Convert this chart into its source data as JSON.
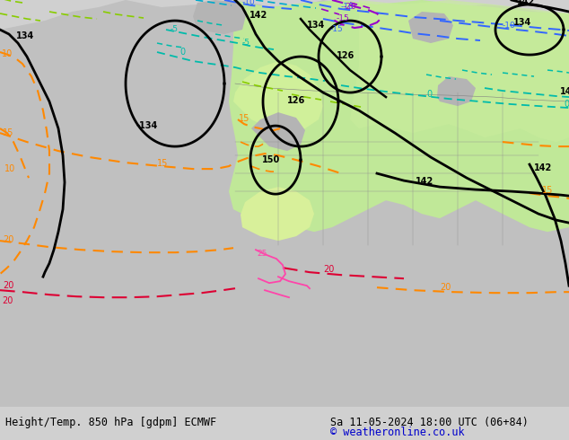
{
  "title_left": "Height/Temp. 850 hPa [gdpm] ECMWF",
  "title_right": "Sa 11-05-2024 18:00 UTC (06+84)",
  "copyright": "© weatheronline.co.uk",
  "fig_width": 6.34,
  "fig_height": 4.9,
  "dpi": 100,
  "bg_color": "#d0d0d0",
  "ocean_color": "#d8d8d8",
  "land_gray_color": "#b8b8b8",
  "green1": "#b8e8a0",
  "green2": "#c8eca8",
  "green3": "#d4f0b0",
  "yellow_green": "#d8f090"
}
